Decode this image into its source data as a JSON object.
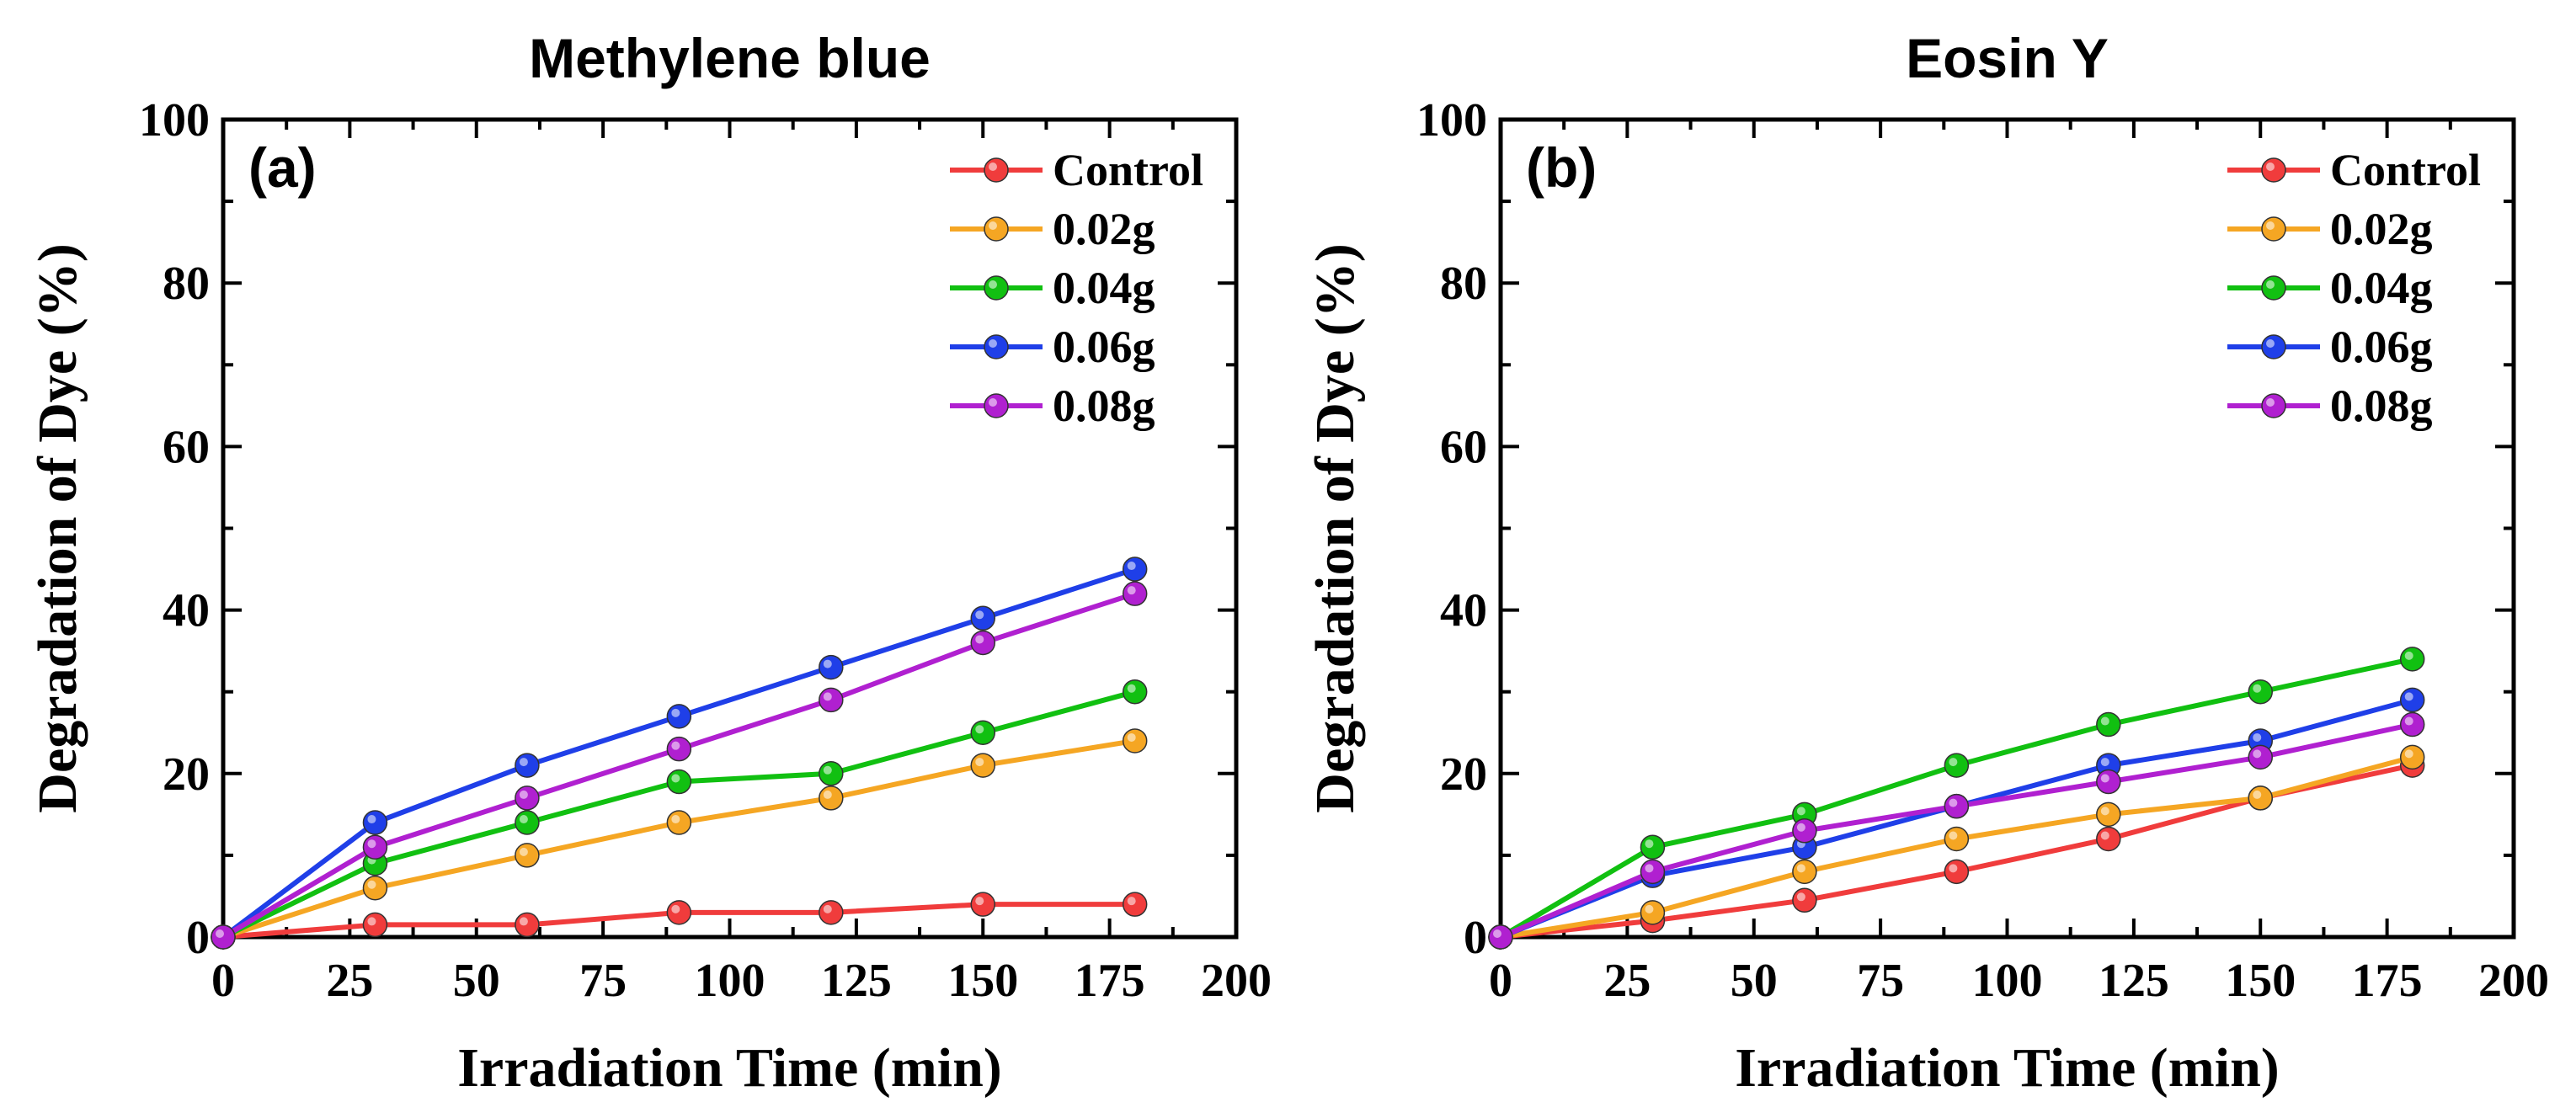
{
  "chart_data": [
    {
      "type": "line",
      "title": "Methylene blue",
      "panel_label": "(a)",
      "xlabel": "Irradiation Time (min)",
      "ylabel": "Degradation of Dye (%)",
      "xlim": [
        0,
        200
      ],
      "ylim": [
        0,
        100
      ],
      "x_ticks": [
        0,
        25,
        50,
        75,
        100,
        125,
        150,
        175,
        200
      ],
      "y_ticks": [
        0,
        20,
        40,
        60,
        80,
        100
      ],
      "x": [
        0,
        30,
        60,
        90,
        120,
        150,
        180
      ],
      "legend_position": "top-right",
      "series": [
        {
          "name": "Control",
          "color": "#f03c3c",
          "values": [
            0,
            1.5,
            1.5,
            3,
            3,
            4,
            4
          ]
        },
        {
          "name": "0.02g",
          "color": "#f5a623",
          "values": [
            0,
            6,
            10,
            14,
            17,
            21,
            24
          ]
        },
        {
          "name": "0.04g",
          "color": "#11c011",
          "values": [
            0,
            9,
            14,
            19,
            20,
            25,
            30
          ]
        },
        {
          "name": "0.06g",
          "color": "#1f3fe8",
          "values": [
            0,
            14,
            21,
            27,
            33,
            39,
            45
          ]
        },
        {
          "name": "0.08g",
          "color": "#b020d0",
          "values": [
            0,
            11,
            17,
            23,
            29,
            36,
            42
          ]
        }
      ]
    },
    {
      "type": "line",
      "title": "Eosin Y",
      "panel_label": "(b)",
      "xlabel": "Irradiation Time (min)",
      "ylabel": "Degradation of Dye (%)",
      "xlim": [
        0,
        200
      ],
      "ylim": [
        0,
        100
      ],
      "x_ticks": [
        0,
        25,
        50,
        75,
        100,
        125,
        150,
        175,
        200
      ],
      "y_ticks": [
        0,
        20,
        40,
        60,
        80,
        100
      ],
      "x": [
        0,
        30,
        60,
        90,
        120,
        150,
        180
      ],
      "legend_position": "top-right",
      "series": [
        {
          "name": "Control",
          "color": "#f03c3c",
          "values": [
            0,
            2,
            4.5,
            8,
            12,
            17,
            21
          ]
        },
        {
          "name": "0.02g",
          "color": "#f5a623",
          "values": [
            0,
            3,
            8,
            12,
            15,
            17,
            22
          ]
        },
        {
          "name": "0.04g",
          "color": "#11c011",
          "values": [
            0,
            11,
            15,
            21,
            26,
            30,
            34
          ]
        },
        {
          "name": "0.06g",
          "color": "#1f3fe8",
          "values": [
            0,
            7.5,
            11,
            16,
            21,
            24,
            29
          ]
        },
        {
          "name": "0.08g",
          "color": "#b020d0",
          "values": [
            0,
            8,
            13,
            16,
            19,
            22,
            26
          ]
        }
      ]
    }
  ]
}
